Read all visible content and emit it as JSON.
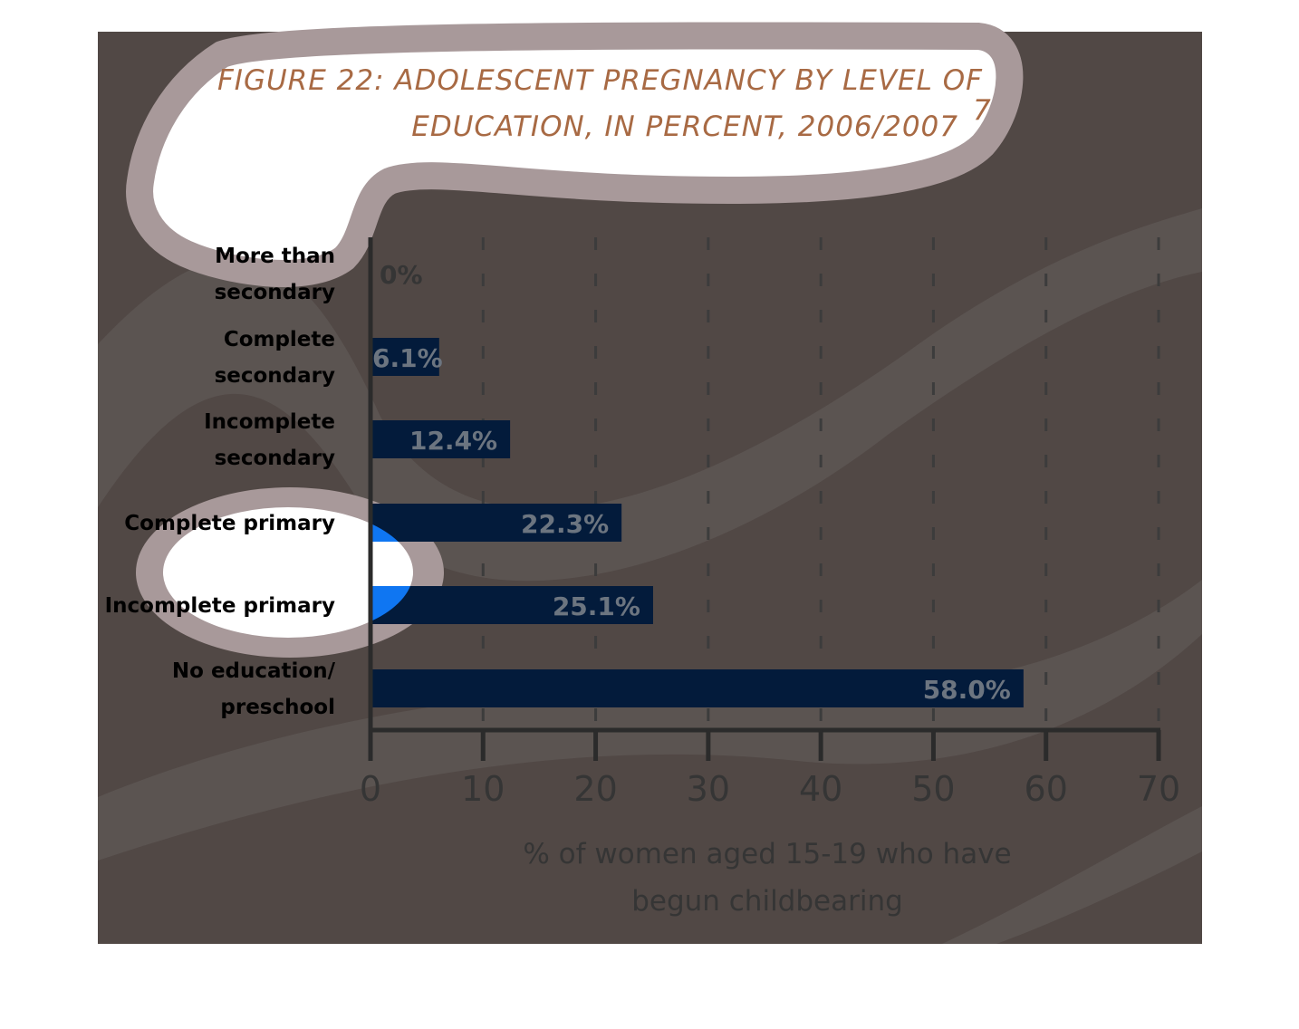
{
  "colors": {
    "background": "#514845",
    "band": "#5f5856",
    "bar": "#031b3b",
    "bar_label": "#6c7580",
    "axis": "#2b2b2b",
    "grid": "#3c3c3c",
    "category_label": "#000000",
    "tick_label": "#353535",
    "title": "#a86a44",
    "bubble_fill": "#ffffff",
    "bubble_ring": "#a8999a",
    "highlight_blue": "#0f76f2"
  },
  "chart_data": {
    "type": "bar",
    "orientation": "horizontal",
    "title_lines": [
      "FIGURE 22: ADOLESCENT PREGNANCY BY LEVEL OF",
      "EDUCATION, IN PERCENT, 2006/2007"
    ],
    "title_superscript": "7",
    "categories": [
      [
        "More than",
        "secondary"
      ],
      [
        "Complete",
        "secondary"
      ],
      [
        "Incomplete",
        "secondary"
      ],
      [
        "Complete primary"
      ],
      [
        "Incomplete primary"
      ],
      [
        "No education/",
        "preschool"
      ]
    ],
    "values": [
      0,
      6.1,
      12.4,
      22.3,
      25.1,
      58.0
    ],
    "value_labels": [
      "0%",
      "6.1%",
      "12.4%",
      "22.3%",
      "25.1%",
      "58.0%"
    ],
    "xlim": [
      0,
      70
    ],
    "xticks": [
      0,
      10,
      20,
      30,
      40,
      50,
      60,
      70
    ],
    "xlabel_lines": [
      "% of women aged 15-19 who have",
      "begun childbearing"
    ],
    "grid": "vertical dashed"
  }
}
